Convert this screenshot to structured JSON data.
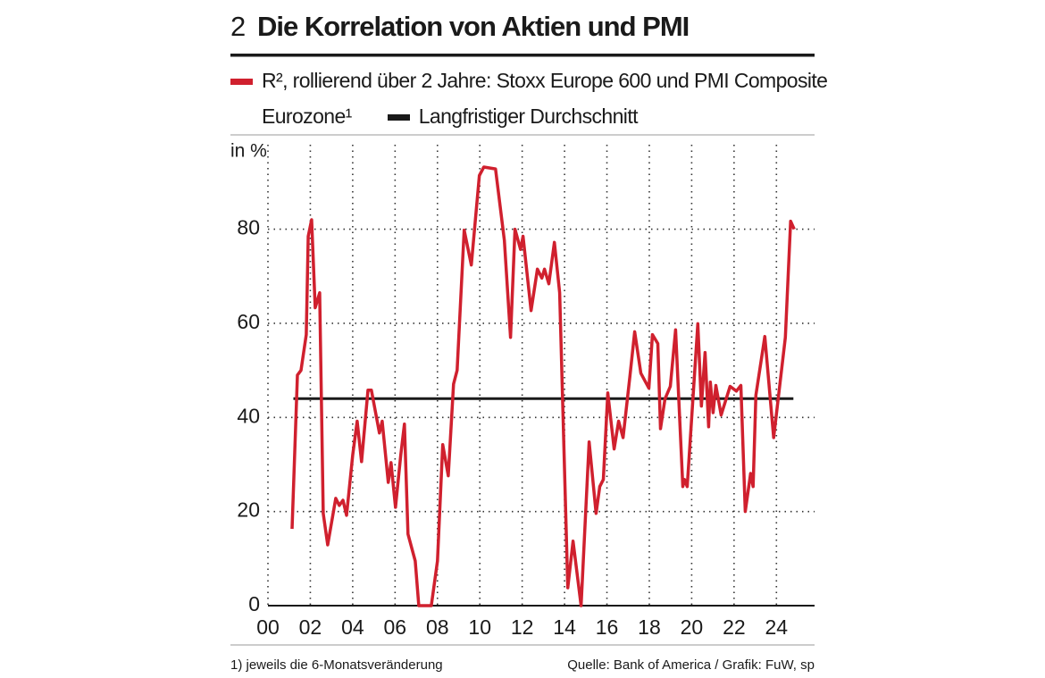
{
  "chart_data": {
    "type": "line",
    "number": "2",
    "title": "Die Korrelation von Aktien und PMI",
    "y_label": "in %",
    "footnote": "1) jeweils die 6-Monatsveränderung",
    "source": "Quelle: Bank of America / Grafik: FuW, sp",
    "xlim": [
      2000,
      2025.8
    ],
    "xticks": [
      {
        "value": 2000,
        "label": "00"
      },
      {
        "value": 2002,
        "label": "02"
      },
      {
        "value": 2004,
        "label": "04"
      },
      {
        "value": 2006,
        "label": "06"
      },
      {
        "value": 2008,
        "label": "08"
      },
      {
        "value": 2010,
        "label": "10"
      },
      {
        "value": 2012,
        "label": "12"
      },
      {
        "value": 2014,
        "label": "14"
      },
      {
        "value": 2016,
        "label": "16"
      },
      {
        "value": 2018,
        "label": "18"
      },
      {
        "value": 2020,
        "label": "20"
      },
      {
        "value": 2022,
        "label": "22"
      },
      {
        "value": 2024,
        "label": "24"
      }
    ],
    "ylim": [
      0,
      97
    ],
    "yticks": [
      0,
      20,
      40,
      60,
      80
    ],
    "grid": true,
    "series": [
      {
        "name": "R², rollierend über 2 Jahre: Stoxx Europe 600 und PMI Composite Eurozone¹",
        "color": "#d0202e",
        "x": [
          2001.14,
          2001.39,
          2001.56,
          2001.81,
          2001.9,
          2002.06,
          2002.23,
          2002.44,
          2002.61,
          2002.82,
          2003.2,
          2003.37,
          2003.54,
          2003.71,
          2004.0,
          2004.21,
          2004.42,
          2004.72,
          2004.88,
          2005.26,
          2005.39,
          2005.68,
          2005.81,
          2006.02,
          2006.27,
          2006.44,
          2006.61,
          2006.95,
          2007.12,
          2007.71,
          2008.0,
          2008.25,
          2008.51,
          2008.76,
          2008.93,
          2009.26,
          2009.6,
          2009.98,
          2010.19,
          2010.74,
          2011.16,
          2011.45,
          2011.66,
          2011.92,
          2012.04,
          2012.42,
          2012.72,
          2012.93,
          2013.05,
          2013.26,
          2013.52,
          2013.77,
          2014.15,
          2014.4,
          2014.78,
          2015.16,
          2015.49,
          2015.66,
          2015.83,
          2016.04,
          2016.34,
          2016.55,
          2016.76,
          2017.09,
          2017.31,
          2017.6,
          2017.98,
          2018.15,
          2018.4,
          2018.53,
          2018.74,
          2018.99,
          2019.24,
          2019.58,
          2019.66,
          2019.79,
          2020.29,
          2020.46,
          2020.63,
          2020.8,
          2020.88,
          2021.01,
          2021.14,
          2021.39,
          2021.81,
          2022.11,
          2022.32,
          2022.53,
          2022.78,
          2022.9,
          2023.03,
          2023.45,
          2023.87,
          2024.42,
          2024.67,
          2024.84
        ],
        "values": [
          16.3,
          49,
          50,
          57.6,
          78.5,
          82,
          63.3,
          66.5,
          19.6,
          12.9,
          22.8,
          21.3,
          22.4,
          19.2,
          32,
          39.2,
          30.6,
          45.8,
          45.8,
          36.7,
          39.2,
          26.2,
          30.4,
          20.9,
          32,
          38.6,
          15.2,
          9.5,
          0,
          0,
          9.5,
          34.2,
          27.6,
          47.1,
          50,
          79.8,
          72.4,
          91.4,
          93.2,
          92.8,
          77.6,
          57,
          80,
          75.7,
          78.5,
          62.7,
          71.5,
          69.6,
          71.5,
          68.4,
          77.2,
          66.5,
          3.8,
          13.7,
          0,
          34.8,
          19.6,
          25.3,
          26.8,
          45.2,
          33.3,
          39.2,
          35.7,
          49,
          58.2,
          49.4,
          46.2,
          57.6,
          55.7,
          37.6,
          43.9,
          46.6,
          58.6,
          25.3,
          26.8,
          25.3,
          59.9,
          42.4,
          53.8,
          38,
          47.5,
          41,
          46.8,
          40.5,
          46.6,
          45.6,
          46.8,
          20,
          28.1,
          25.3,
          44.7,
          57.2,
          35.7,
          57,
          81.7,
          80
        ]
      },
      {
        "name": "Langfristiger Durchschnitt",
        "color": "#1a1a1a",
        "x": [
          2001.2,
          2024.8
        ],
        "values": [
          44,
          44
        ]
      }
    ]
  }
}
